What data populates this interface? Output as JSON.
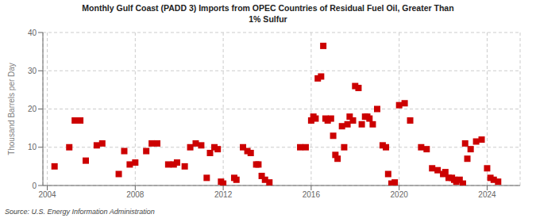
{
  "chart_data": {
    "type": "scatter",
    "title": "Monthly Gulf Coast (PADD 3) Imports from OPEC Countries of Residual Fuel Oil, Greater Than\n1% Sulfur",
    "ylabel": "Thousand Barrels per Day",
    "annotations": [
      "Source: U.S. Energy Information Administration"
    ],
    "color": "#cc0000",
    "marker": "square",
    "grid": true,
    "xlim": [
      2003.8,
      2025.5
    ],
    "xticks": [
      2004,
      2008,
      2012,
      2016,
      2020,
      2024
    ],
    "ylim": [
      0,
      40
    ],
    "yticks": [
      0,
      10,
      20,
      30,
      40
    ],
    "x": [
      2004.33,
      2005.0,
      2005.25,
      2005.5,
      2005.75,
      2006.25,
      2006.5,
      2007.25,
      2007.5,
      2007.75,
      2008.0,
      2008.5,
      2008.75,
      2009.0,
      2009.5,
      2009.75,
      2009.9,
      2010.25,
      2010.5,
      2010.75,
      2011.0,
      2011.25,
      2011.4,
      2011.6,
      2011.75,
      2011.9,
      2012.0,
      2012.5,
      2012.6,
      2012.9,
      2013.1,
      2013.25,
      2013.5,
      2013.6,
      2013.75,
      2013.9,
      2014.1,
      2015.5,
      2015.75,
      2016.0,
      2016.1,
      2016.2,
      2016.3,
      2016.45,
      2016.55,
      2016.65,
      2016.75,
      2016.9,
      2017.0,
      2017.1,
      2017.2,
      2017.4,
      2017.5,
      2017.65,
      2017.75,
      2017.9,
      2018.0,
      2018.15,
      2018.3,
      2018.45,
      2018.55,
      2018.65,
      2018.8,
      2019.0,
      2019.25,
      2019.4,
      2019.5,
      2019.65,
      2019.8,
      2020.0,
      2020.25,
      2020.5,
      2021.0,
      2021.25,
      2021.5,
      2021.75,
      2022.0,
      2022.1,
      2022.25,
      2022.4,
      2022.5,
      2022.6,
      2022.75,
      2022.9,
      2023.0,
      2023.1,
      2023.25,
      2023.5,
      2023.75,
      2024.0,
      2024.15,
      2024.3,
      2024.5
    ],
    "values": [
      5.0,
      10.0,
      17.0,
      17.0,
      6.5,
      10.5,
      11.0,
      3.0,
      9.0,
      5.5,
      6.0,
      9.0,
      11.0,
      11.0,
      5.5,
      5.5,
      6.0,
      5.0,
      10.0,
      11.0,
      10.5,
      2.0,
      8.5,
      10.0,
      9.5,
      1.0,
      0.5,
      2.0,
      1.5,
      10.0,
      9.0,
      8.5,
      5.5,
      5.5,
      2.5,
      1.5,
      0.8,
      10.0,
      10.0,
      17.0,
      18.0,
      17.5,
      28.0,
      28.5,
      36.5,
      17.5,
      17.0,
      17.5,
      13.0,
      8.0,
      7.0,
      15.5,
      10.0,
      16.0,
      18.0,
      17.0,
      26.0,
      25.5,
      16.0,
      18.0,
      18.0,
      17.5,
      16.0,
      20.0,
      10.5,
      10.0,
      3.0,
      0.5,
      0.8,
      21.0,
      21.5,
      17.0,
      10.0,
      9.5,
      4.5,
      4.0,
      3.0,
      3.5,
      2.0,
      2.0,
      1.5,
      1.0,
      1.5,
      0.5,
      11.0,
      7.0,
      9.5,
      11.5,
      12.0,
      4.5,
      2.0,
      1.5,
      1.0
    ]
  }
}
